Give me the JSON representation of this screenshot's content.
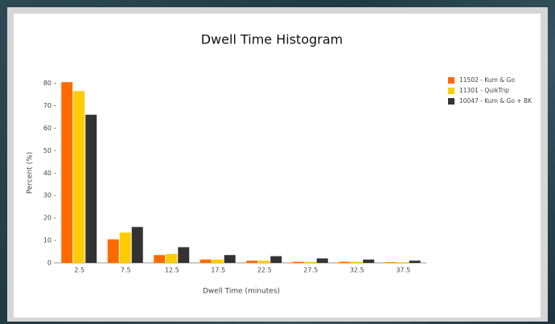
{
  "chart_data": {
    "type": "bar",
    "title": "Dwell Time Histogram",
    "x_label": "Dwell Time (minutes)",
    "y_label": "Percent (%)",
    "categories": [
      "2.5",
      "7.5",
      "12.5",
      "17.5",
      "22.5",
      "27.5",
      "32.5",
      "37.5"
    ],
    "series": [
      {
        "name": "11502 - Kum & Go",
        "color": "#ff6a00",
        "values": [
          80.5,
          10.5,
          3.5,
          1.5,
          1,
          0.5,
          0.5,
          0.3
        ]
      },
      {
        "name": "11301 - QuikTrip",
        "color": "#ffcc00",
        "values": [
          76.5,
          13.5,
          4,
          1.5,
          1,
          0.5,
          0.5,
          0.3
        ]
      },
      {
        "name": "10047 - Kum & Go + BK",
        "color": "#333333",
        "values": [
          66,
          16,
          7,
          3.5,
          3,
          2,
          1.5,
          1
        ]
      }
    ],
    "ylim": [
      0,
      82
    ],
    "yticks": [
      0,
      10,
      20,
      30,
      40,
      50,
      60,
      70,
      80
    ],
    "grid": false,
    "legend": "top-right"
  }
}
